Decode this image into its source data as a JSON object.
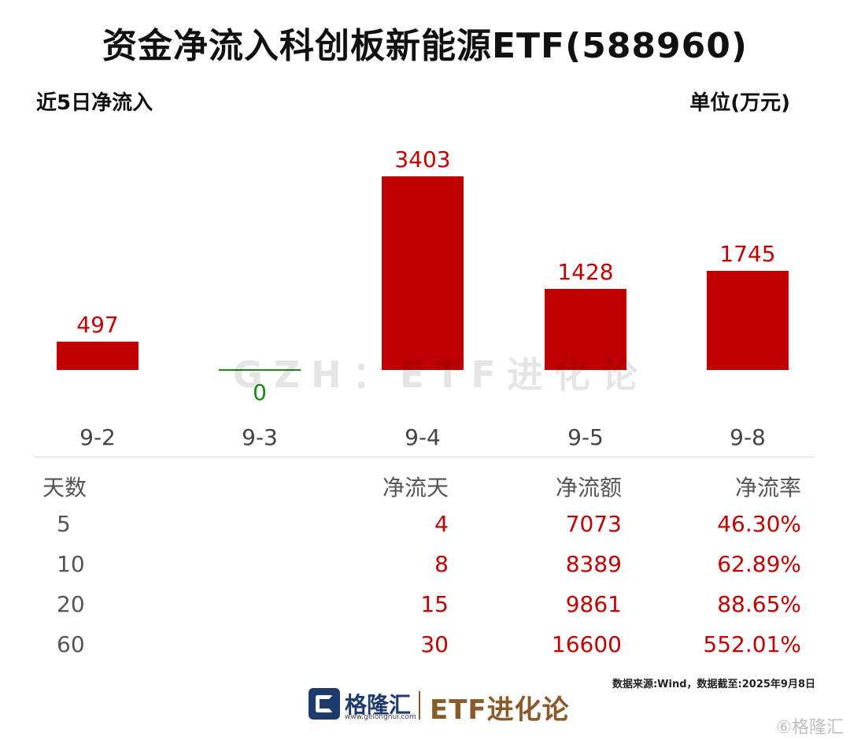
{
  "header": {
    "title": "资金净流入科创板新能源ETF(588960)",
    "subtitle_left": "近5日净流入",
    "subtitle_right": "单位(万元)"
  },
  "watermark": "GZH：ETF进化论",
  "chart_data": {
    "type": "bar",
    "title": "资金净流入科创板新能源ETF(588960)",
    "subtitle": "近5日净流入",
    "ylabel": "单位(万元)",
    "categories": [
      "9-2",
      "9-3",
      "9-4",
      "9-5",
      "9-8"
    ],
    "values": [
      497,
      0,
      3403,
      1428,
      1745
    ],
    "ylim": [
      0,
      3403
    ],
    "grid": false,
    "colors": {
      "positive": "#c00000",
      "zero": "#1a8a1a"
    }
  },
  "stats_table": {
    "headers": [
      "天数",
      "净流天",
      "净流额",
      "净流率"
    ],
    "rows": [
      [
        "5",
        "4",
        "7073",
        "46.30%"
      ],
      [
        "10",
        "8",
        "8389",
        "62.89%"
      ],
      [
        "20",
        "15",
        "9861",
        "88.65%"
      ],
      [
        "60",
        "30",
        "16600",
        "552.01%"
      ]
    ]
  },
  "source": "数据来源:Wind，数据截至:2025年9月8日",
  "footer": {
    "logo_name": "格隆汇",
    "logo_url": "www.gelonghui.com",
    "brand": "ETF进化论"
  },
  "corner_watermark": "⑥格隆汇"
}
